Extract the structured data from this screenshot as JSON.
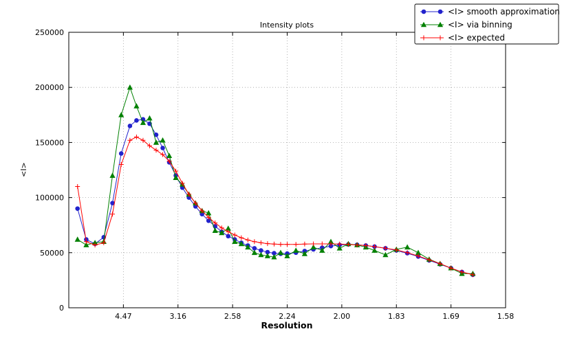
{
  "chart_data": {
    "type": "line",
    "title": "Intensity plots",
    "xlabel": "Resolution",
    "ylabel": "<I>",
    "grid": "dotted",
    "legend_position": "top-right",
    "x_axis": {
      "range": [
        0,
        0.4
      ],
      "ticks": [
        {
          "pos": 0.05,
          "label": "4.47"
        },
        {
          "pos": 0.1,
          "label": "3.16"
        },
        {
          "pos": 0.15,
          "label": "2.58"
        },
        {
          "pos": 0.2,
          "label": "2.24"
        },
        {
          "pos": 0.25,
          "label": "2.00"
        },
        {
          "pos": 0.3,
          "label": "1.83"
        },
        {
          "pos": 0.35,
          "label": "1.69"
        },
        {
          "pos": 0.4,
          "label": "1.58"
        }
      ]
    },
    "y_axis": {
      "range": [
        0,
        250000
      ],
      "ticks": [
        {
          "pos": 0,
          "label": "0"
        },
        {
          "pos": 50000,
          "label": "50000"
        },
        {
          "pos": 100000,
          "label": "100000"
        },
        {
          "pos": 150000,
          "label": "150000"
        },
        {
          "pos": 200000,
          "label": "200000"
        },
        {
          "pos": 250000,
          "label": "250000"
        }
      ]
    },
    "x": [
      0.008,
      0.016,
      0.024,
      0.032,
      0.04,
      0.048,
      0.056,
      0.062,
      0.068,
      0.074,
      0.08,
      0.086,
      0.092,
      0.098,
      0.104,
      0.11,
      0.116,
      0.122,
      0.128,
      0.134,
      0.14,
      0.146,
      0.152,
      0.158,
      0.164,
      0.17,
      0.176,
      0.182,
      0.188,
      0.194,
      0.2,
      0.208,
      0.216,
      0.224,
      0.232,
      0.24,
      0.248,
      0.256,
      0.264,
      0.272,
      0.28,
      0.29,
      0.3,
      0.31,
      0.32,
      0.33,
      0.34,
      0.35,
      0.36,
      0.37
    ],
    "series": [
      {
        "name": "<I> smooth approximation",
        "color": "#2222cc",
        "marker": "circle",
        "values": [
          90000,
          62000,
          58000,
          64000,
          95000,
          140000,
          165000,
          170000,
          171000,
          167000,
          157000,
          145000,
          132000,
          120000,
          109000,
          100000,
          92000,
          85000,
          79000,
          74000,
          69000,
          65000,
          62000,
          59000,
          56500,
          54000,
          52000,
          50500,
          49500,
          49000,
          49200,
          50000,
          51500,
          53000,
          54500,
          56000,
          57000,
          57500,
          57200,
          56500,
          55500,
          54000,
          52000,
          49500,
          46500,
          43000,
          39500,
          36000,
          32500,
          30000
        ]
      },
      {
        "name": "<I> via binning",
        "color": "#008000",
        "marker": "triangle",
        "values": [
          62000,
          57000,
          59000,
          60000,
          120000,
          175000,
          200000,
          183000,
          168000,
          172000,
          150000,
          152000,
          138000,
          118000,
          112000,
          103000,
          95000,
          88000,
          86000,
          70000,
          68000,
          72000,
          60000,
          58000,
          55000,
          50000,
          48000,
          47000,
          46000,
          50000,
          47000,
          52000,
          49000,
          55000,
          52000,
          60000,
          54000,
          58000,
          57000,
          55000,
          52000,
          48000,
          53000,
          55000,
          50000,
          44000,
          40000,
          36000,
          31000,
          31000
        ]
      },
      {
        "name": "<I> expected",
        "color": "#ff0000",
        "marker": "plus",
        "values": [
          110000,
          60000,
          57000,
          59000,
          85000,
          130000,
          152000,
          155000,
          152000,
          147000,
          143000,
          139000,
          133000,
          124000,
          113000,
          103000,
          95000,
          88000,
          82000,
          77000,
          72500,
          69000,
          66000,
          63500,
          61500,
          60000,
          59000,
          58200,
          57800,
          57500,
          57500,
          57500,
          57800,
          58000,
          58000,
          58000,
          57800,
          57500,
          57000,
          56500,
          55500,
          54000,
          52500,
          50000,
          47000,
          43500,
          40000,
          36000,
          32500,
          30000
        ]
      }
    ],
    "style": {
      "grid_color": "#a0a0a0",
      "axis_color": "#000000",
      "background": "#ffffff"
    }
  }
}
